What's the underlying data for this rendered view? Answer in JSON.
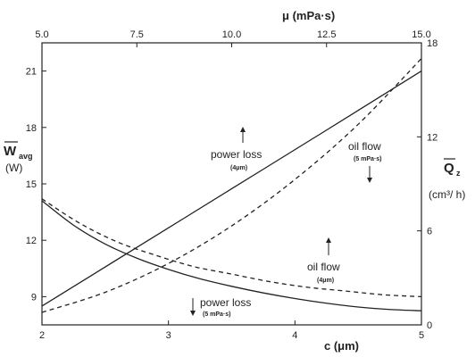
{
  "chart_data": {
    "type": "line",
    "x_bottom": {
      "label": "c (μm)",
      "range": [
        2,
        5
      ],
      "ticks": [
        "2",
        "3",
        "4",
        "5"
      ]
    },
    "x_top": {
      "label": "μ (mPa·s)",
      "range": [
        5.0,
        15.0
      ],
      "ticks": [
        "5.0",
        "7.5",
        "10.0",
        "12.5",
        "15.0"
      ]
    },
    "y_left": {
      "label_main": "W",
      "label_sub": "avg",
      "label_unit": "(W)",
      "range": [
        7.5,
        22.5
      ],
      "ticks": [
        "9",
        "12",
        "15",
        "18",
        "21"
      ]
    },
    "y_right": {
      "label_main": "Q",
      "label_sub": "z",
      "label_unit": "(cm³/ h)",
      "range": [
        0,
        18
      ],
      "ticks": [
        "0",
        "6",
        "12",
        "18"
      ]
    },
    "series": [
      {
        "name": "power loss (4μm)",
        "style": "solid",
        "axis_x": "top",
        "axis_y": "left",
        "points": [
          [
            5.0,
            8.5
          ],
          [
            7.5,
            11.62
          ],
          [
            10.0,
            14.74
          ],
          [
            12.5,
            17.86
          ],
          [
            15.0,
            21.0
          ]
        ]
      },
      {
        "name": "oil flow (5 mPa·s)",
        "style": "dashed",
        "axis_x": "bottom",
        "axis_y": "right",
        "points": [
          [
            2.0,
            0.8
          ],
          [
            2.5,
            2.08
          ],
          [
            3.0,
            3.92
          ],
          [
            3.5,
            6.32
          ],
          [
            4.0,
            9.28
          ],
          [
            4.5,
            12.8
          ],
          [
            5.0,
            17.0
          ]
        ]
      },
      {
        "name": "oil flow (4μm)",
        "style": "dashed",
        "axis_x": "top",
        "axis_y": "left",
        "points": [
          [
            5.0,
            14.2
          ],
          [
            6.0,
            12.9
          ],
          [
            7.0,
            11.9
          ],
          [
            8.0,
            11.2
          ],
          [
            9.0,
            10.6
          ],
          [
            10.0,
            10.2
          ],
          [
            11.0,
            9.8
          ],
          [
            12.0,
            9.5
          ],
          [
            13.0,
            9.3
          ],
          [
            14.0,
            9.1
          ],
          [
            15.0,
            9.0
          ]
        ]
      },
      {
        "name": "power loss (5 mPa·s)",
        "style": "solid",
        "axis_x": "bottom",
        "axis_y": "left",
        "points": [
          [
            2.0,
            14.1
          ],
          [
            2.25,
            12.8
          ],
          [
            2.5,
            11.8
          ],
          [
            2.75,
            11.05
          ],
          [
            3.0,
            10.45
          ],
          [
            3.25,
            9.95
          ],
          [
            3.5,
            9.55
          ],
          [
            3.75,
            9.2
          ],
          [
            4.0,
            8.9
          ],
          [
            4.25,
            8.65
          ],
          [
            4.5,
            8.45
          ],
          [
            4.75,
            8.32
          ],
          [
            5.0,
            8.25
          ]
        ]
      }
    ],
    "annotations": [
      {
        "id": "pl4",
        "main": "power loss",
        "sub": "(4μm)",
        "arrow": "up"
      },
      {
        "id": "of5",
        "main": "oil flow",
        "sub": "(5 mPa·s)",
        "arrow": "down"
      },
      {
        "id": "of4",
        "main": "oil flow",
        "sub": "(4μm)",
        "arrow": "up"
      },
      {
        "id": "pl5",
        "main": "power loss",
        "sub": "(5 mPa·s)",
        "arrow": "down"
      }
    ],
    "grid": false,
    "legend": "none"
  }
}
